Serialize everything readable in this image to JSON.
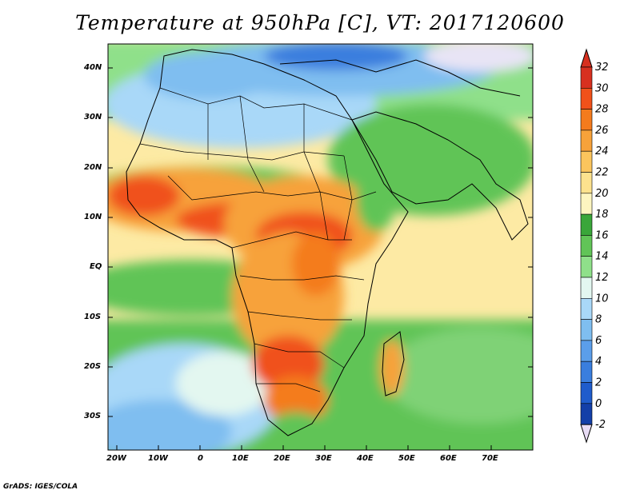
{
  "title": "Temperature at 950hPa [C], VT: 2017120600",
  "credit": "GrADS: IGES/COLA",
  "y_ticks": [
    "40N",
    "30N",
    "20N",
    "10N",
    "EQ",
    "10S",
    "20S",
    "30S"
  ],
  "x_ticks": [
    "20W",
    "10W",
    "0",
    "10E",
    "20E",
    "30E",
    "40E",
    "50E",
    "60E",
    "70E"
  ],
  "colorbar": {
    "labels": [
      "32",
      "30",
      "28",
      "26",
      "24",
      "22",
      "20",
      "18",
      "16",
      "14",
      "12",
      "10",
      "8",
      "6",
      "4",
      "2",
      "0",
      "-2"
    ],
    "colors": [
      "#d7301f",
      "#f0511a",
      "#f47b1d",
      "#f7a23a",
      "#fbc55d",
      "#fde28e",
      "#fdf5c0",
      "#3aa63a",
      "#61c457",
      "#8fe08a",
      "#e3f7f0",
      "#a9d8f8",
      "#7fbef0",
      "#5b9eea",
      "#3a7ede",
      "#1f5ccc",
      "#133fa8",
      "#0d2378"
    ],
    "over_color": "#d7301f",
    "under_color": "#e8dcf5"
  }
}
